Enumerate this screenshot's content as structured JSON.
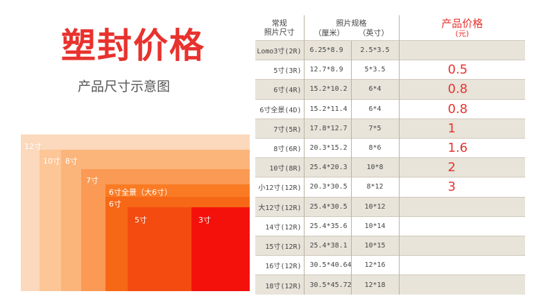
{
  "title": "塑封价格",
  "subtitle": "产品尺寸示意图",
  "diagram": {
    "sizes": [
      {
        "label": "12寸",
        "color": "#fcd8bc"
      },
      {
        "label": "10寸",
        "color": "#fcc697"
      },
      {
        "label": "8寸",
        "color": "#fbb57b"
      },
      {
        "label": "7寸",
        "color": "#fa9a54"
      },
      {
        "label": "6寸全景（大6寸）",
        "color": "#fa7b24"
      },
      {
        "label": "6寸",
        "color": "#f76816"
      },
      {
        "label": "5寸",
        "color": "#f34b10"
      },
      {
        "label": "3寸",
        "color": "#f4110c"
      }
    ]
  },
  "table": {
    "header": {
      "col1_line1": "常规",
      "col1_line2": "照片尺寸",
      "col23_line1": "照片规格",
      "col2_sub": "（厘米）",
      "col3_sub": "（英寸）",
      "price_main": "产品价格",
      "price_sub": "(元)"
    },
    "rows": [
      {
        "name": "Lomo3寸(2R)",
        "cm": "6.25*8.9",
        "inch": "2.5*3.5",
        "price": ""
      },
      {
        "name": "5寸(3R)",
        "cm": "12.7*8.9",
        "inch": "5*3.5",
        "price": "0.5"
      },
      {
        "name": "6寸(4R)",
        "cm": "15.2*10.2",
        "inch": "6*4",
        "price": "0.8"
      },
      {
        "name": "6寸全景(4D)",
        "cm": "15.2*11.4",
        "inch": "6*4",
        "price": "0.8"
      },
      {
        "name": "7寸(5R)",
        "cm": "17.8*12.7",
        "inch": "7*5",
        "price": "1"
      },
      {
        "name": "8寸(6R)",
        "cm": "20.3*15.2",
        "inch": "8*6",
        "price": "1.6"
      },
      {
        "name": "10寸(8R)",
        "cm": "25.4*20.3",
        "inch": "10*8",
        "price": "2"
      },
      {
        "name": "小12寸(12R)",
        "cm": "20.3*30.5",
        "inch": "8*12",
        "price": "3"
      },
      {
        "name": "大12寸(12R)",
        "cm": "25.4*30.5",
        "inch": "10*12",
        "price": ""
      },
      {
        "name": "14寸(12R)",
        "cm": "25.4*35.6",
        "inch": "10*14",
        "price": ""
      },
      {
        "name": "15寸(12R)",
        "cm": "25.4*38.1",
        "inch": "10*15",
        "price": ""
      },
      {
        "name": "16寸(12R)",
        "cm": "30.5*40.64",
        "inch": "12*16",
        "price": ""
      },
      {
        "name": "18寸(12R)",
        "cm": "30.5*45.72",
        "inch": "12*18",
        "price": ""
      }
    ]
  }
}
